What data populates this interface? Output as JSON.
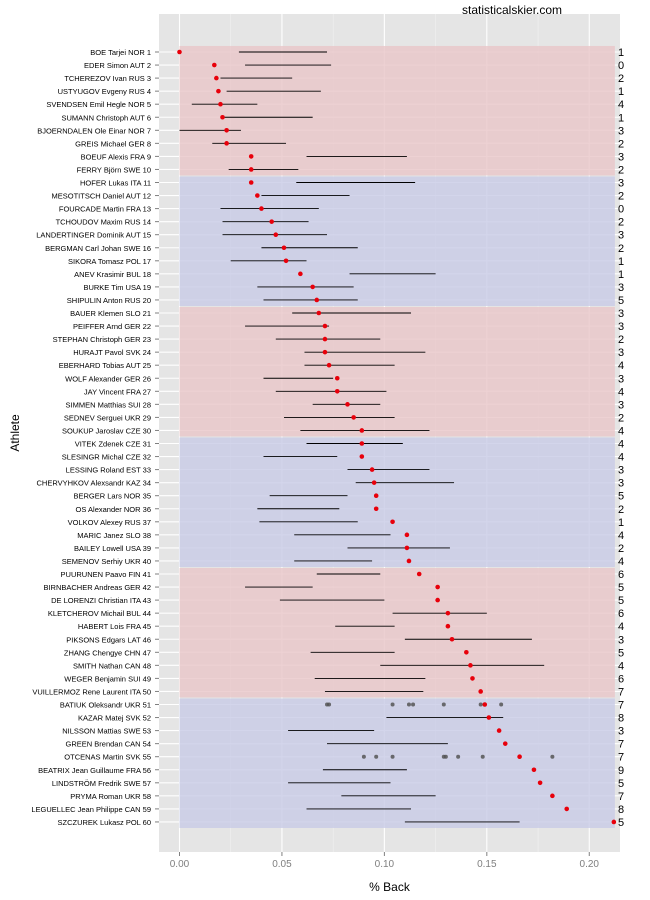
{
  "site_label": "statisticalskier.com",
  "chart_data": {
    "type": "scatter",
    "title": "",
    "xlabel": "% Back",
    "ylabel": "Athlete",
    "xlim": [
      -0.01,
      0.215
    ],
    "x_ticks": [
      0.0,
      0.05,
      0.1,
      0.15,
      0.2
    ],
    "x_tick_labels": [
      "0.00",
      "0.05",
      "0.10",
      "0.15",
      "0.20"
    ],
    "grid": true,
    "point_color": "#e8000b",
    "range_color": "#000000",
    "extra_point_color": "#555555",
    "band_colors": [
      "#e8c6c8",
      "#c8cbe6"
    ],
    "band_value": 0.2125,
    "group_size": 10,
    "athletes": [
      {
        "label": "BOE Tarjei NOR 1",
        "value": 0.0,
        "range": [
          0.029,
          0.072
        ],
        "count": "1"
      },
      {
        "label": "EDER Simon AUT 2",
        "value": 0.017,
        "range": [
          0.032,
          0.074
        ],
        "count": "0"
      },
      {
        "label": "TCHEREZOV Ivan RUS 3",
        "value": 0.018,
        "range": [
          0.02,
          0.055
        ],
        "count": "2"
      },
      {
        "label": "USTYUGOV Evgeny RUS 4",
        "value": 0.019,
        "range": [
          0.023,
          0.069
        ],
        "count": "1"
      },
      {
        "label": "SVENDSEN Emil Hegle NOR 5",
        "value": 0.02,
        "range": [
          0.006,
          0.038
        ],
        "count": "4"
      },
      {
        "label": "SUMANN Christoph AUT 6",
        "value": 0.021,
        "range": [
          0.021,
          0.065
        ],
        "count": "1"
      },
      {
        "label": "BJOERNDALEN Ole Einar NOR 7",
        "value": 0.023,
        "range": [
          0.0,
          0.03
        ],
        "count": "3"
      },
      {
        "label": "GREIS Michael GER 8",
        "value": 0.023,
        "range": [
          0.016,
          0.052
        ],
        "count": "2"
      },
      {
        "label": "BOEUF Alexis FRA 9",
        "value": 0.035,
        "range": [
          0.062,
          0.111
        ],
        "count": "3"
      },
      {
        "label": "FERRY Björn SWE 10",
        "value": 0.035,
        "range": [
          0.024,
          0.058
        ],
        "count": "2"
      },
      {
        "label": "HOFER Lukas ITA 11",
        "value": 0.035,
        "range": [
          0.057,
          0.115
        ],
        "count": "3"
      },
      {
        "label": "MESOTITSCH Daniel AUT 12",
        "value": 0.038,
        "range": [
          0.04,
          0.083
        ],
        "count": "2"
      },
      {
        "label": "FOURCADE Martin FRA 13",
        "value": 0.04,
        "range": [
          0.02,
          0.068
        ],
        "count": "0"
      },
      {
        "label": "TCHOUDOV Maxim RUS 14",
        "value": 0.045,
        "range": [
          0.021,
          0.063
        ],
        "count": "2"
      },
      {
        "label": "LANDERTINGER Dominik AUT 15",
        "value": 0.047,
        "range": [
          0.021,
          0.072
        ],
        "count": "3"
      },
      {
        "label": "BERGMAN Carl Johan SWE 16",
        "value": 0.051,
        "range": [
          0.04,
          0.087
        ],
        "count": "2"
      },
      {
        "label": "SIKORA Tomasz POL 17",
        "value": 0.052,
        "range": [
          0.025,
          0.062
        ],
        "count": "1"
      },
      {
        "label": "ANEV Krasimir BUL 18",
        "value": 0.059,
        "range": [
          0.083,
          0.125
        ],
        "count": "1"
      },
      {
        "label": "BURKE Tim USA 19",
        "value": 0.065,
        "range": [
          0.038,
          0.085
        ],
        "count": "3"
      },
      {
        "label": "SHIPULIN Anton RUS 20",
        "value": 0.067,
        "range": [
          0.041,
          0.087
        ],
        "count": "5"
      },
      {
        "label": "BAUER Klemen SLO 21",
        "value": 0.068,
        "range": [
          0.055,
          0.113
        ],
        "count": "3"
      },
      {
        "label": "PEIFFER Arnd GER 22",
        "value": 0.071,
        "range": [
          0.032,
          0.073
        ],
        "count": "3"
      },
      {
        "label": "STEPHAN Christoph GER 23",
        "value": 0.071,
        "range": [
          0.047,
          0.098
        ],
        "count": "2"
      },
      {
        "label": "HURAJT Pavol SVK 24",
        "value": 0.071,
        "range": [
          0.061,
          0.12
        ],
        "count": "3"
      },
      {
        "label": "EBERHARD Tobias AUT 25",
        "value": 0.073,
        "range": [
          0.061,
          0.105
        ],
        "count": "4"
      },
      {
        "label": "WOLF Alexander GER 26",
        "value": 0.077,
        "range": [
          0.041,
          0.075
        ],
        "count": "3"
      },
      {
        "label": "JAY Vincent FRA 27",
        "value": 0.077,
        "range": [
          0.047,
          0.101
        ],
        "count": "4"
      },
      {
        "label": "SIMMEN Matthias SUI 28",
        "value": 0.082,
        "range": [
          0.065,
          0.098
        ],
        "count": "3"
      },
      {
        "label": "SEDNEV Serguei UKR 29",
        "value": 0.085,
        "range": [
          0.051,
          0.105
        ],
        "count": "2"
      },
      {
        "label": "SOUKUP Jaroslav CZE 30",
        "value": 0.089,
        "range": [
          0.059,
          0.122
        ],
        "count": "4"
      },
      {
        "label": "VITEK Zdenek CZE 31",
        "value": 0.089,
        "range": [
          0.062,
          0.109
        ],
        "count": "4"
      },
      {
        "label": "SLESINGR Michal CZE 32",
        "value": 0.089,
        "range": [
          0.041,
          0.077
        ],
        "count": "4"
      },
      {
        "label": "LESSING Roland EST 33",
        "value": 0.094,
        "range": [
          0.082,
          0.122
        ],
        "count": "3"
      },
      {
        "label": "CHERVYHKOV Alexsandr KAZ 34",
        "value": 0.095,
        "range": [
          0.086,
          0.134
        ],
        "count": "3"
      },
      {
        "label": "BERGER Lars NOR 35",
        "value": 0.096,
        "range": [
          0.044,
          0.082
        ],
        "count": "5"
      },
      {
        "label": "OS Alexander NOR 36",
        "value": 0.096,
        "range": [
          0.038,
          0.078
        ],
        "count": "2"
      },
      {
        "label": "VOLKOV Alexey RUS 37",
        "value": 0.104,
        "range": [
          0.039,
          0.087
        ],
        "count": "1"
      },
      {
        "label": "MARIC Janez SLO 38",
        "value": 0.111,
        "range": [
          0.056,
          0.103
        ],
        "count": "4"
      },
      {
        "label": "BAILEY Lowell USA 39",
        "value": 0.111,
        "range": [
          0.082,
          0.132
        ],
        "count": "2"
      },
      {
        "label": "SEMENOV Serhiy UKR 40",
        "value": 0.112,
        "range": [
          0.056,
          0.094
        ],
        "count": "4"
      },
      {
        "label": "PUURUNEN Paavo FIN 41",
        "value": 0.117,
        "range": [
          0.067,
          0.098
        ],
        "count": "6"
      },
      {
        "label": "BIRNBACHER Andreas GER 42",
        "value": 0.126,
        "range": [
          0.032,
          0.065
        ],
        "count": "5"
      },
      {
        "label": "DE LORENZI Christian ITA 43",
        "value": 0.126,
        "range": [
          0.049,
          0.1
        ],
        "count": "5"
      },
      {
        "label": "KLETCHEROV Michail BUL 44",
        "value": 0.131,
        "range": [
          0.104,
          0.15
        ],
        "count": "6"
      },
      {
        "label": "HABERT Lois FRA 45",
        "value": 0.131,
        "range": [
          0.076,
          0.105
        ],
        "count": "4"
      },
      {
        "label": "PIKSONS Edgars LAT 46",
        "value": 0.133,
        "range": [
          0.11,
          0.172
        ],
        "count": "3"
      },
      {
        "label": "ZHANG Chengye CHN 47",
        "value": 0.14,
        "range": [
          0.064,
          0.105
        ],
        "count": "5"
      },
      {
        "label": "SMITH Nathan CAN 48",
        "value": 0.142,
        "range": [
          0.098,
          0.178
        ],
        "count": "4"
      },
      {
        "label": "WEGER Benjamin SUI 49",
        "value": 0.143,
        "range": [
          0.066,
          0.12
        ],
        "count": "6"
      },
      {
        "label": "VUILLERMOZ Rene Laurent ITA 50",
        "value": 0.147,
        "range": [
          0.071,
          0.119
        ],
        "count": "7"
      },
      {
        "label": "BATIUK Oleksandr UKR 51",
        "value": 0.149,
        "range": null,
        "count": "7",
        "extra_points": [
          0.072,
          0.073,
          0.104,
          0.112,
          0.114,
          0.129,
          0.147,
          0.157
        ]
      },
      {
        "label": "KAZAR Matej SVK 52",
        "value": 0.151,
        "range": [
          0.101,
          0.158
        ],
        "count": "8"
      },
      {
        "label": "NILSSON Mattias SWE 53",
        "value": 0.156,
        "range": [
          0.053,
          0.095
        ],
        "count": "3"
      },
      {
        "label": "GREEN Brendan CAN 54",
        "value": 0.159,
        "range": [
          0.072,
          0.131
        ],
        "count": "7"
      },
      {
        "label": "OTCENAS Martin SVK 55",
        "value": 0.166,
        "range": null,
        "count": "7",
        "extra_points": [
          0.09,
          0.096,
          0.104,
          0.129,
          0.13,
          0.136,
          0.148,
          0.182
        ]
      },
      {
        "label": "BEATRIX Jean Guillaume FRA 56",
        "value": 0.173,
        "range": [
          0.07,
          0.111
        ],
        "count": "9"
      },
      {
        "label": "LINDSTRÖM Fredrik SWE 57",
        "value": 0.176,
        "range": [
          0.053,
          0.103
        ],
        "count": "5"
      },
      {
        "label": "PRYMA Roman UKR 58",
        "value": 0.182,
        "range": [
          0.079,
          0.125
        ],
        "count": "7"
      },
      {
        "label": "LEGUELLEC Jean Philippe CAN 59",
        "value": 0.189,
        "range": [
          0.062,
          0.113
        ],
        "count": "8"
      },
      {
        "label": "SZCZUREK Lukasz POL 60",
        "value": 0.212,
        "range": [
          0.11,
          0.166
        ],
        "count": "5"
      }
    ]
  }
}
